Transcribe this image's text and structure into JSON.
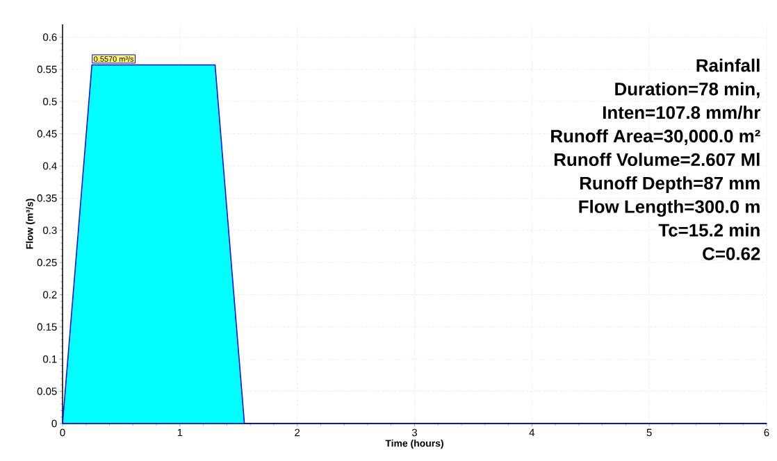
{
  "chart_data": {
    "type": "area",
    "xlabel": "Time  (hours)",
    "ylabel": "Flow  (m³/s)",
    "x": [
      0,
      0.25,
      1.3,
      1.55,
      6
    ],
    "values": [
      0,
      0.557,
      0.557,
      0,
      0
    ],
    "color": "#00ffff",
    "xlim": [
      0,
      6
    ],
    "xticks": [
      0,
      1,
      2,
      3,
      4,
      5,
      6
    ],
    "ylim": [
      0,
      0.62
    ],
    "yticks": [
      0,
      0.05,
      0.1,
      0.15,
      0.2,
      0.25,
      0.3,
      0.35,
      0.4,
      0.45,
      0.5,
      0.55,
      0.6
    ],
    "grid": true,
    "annotations": [
      {
        "text": "0.5570 m³/s",
        "x": 0.25,
        "y": 0.557
      },
      "Rainfall",
      "Duration=78 min,",
      "Inten=107.8 mm/hr",
      "Runoff Area=30,000.0 m²",
      "Runoff Volume=2.607 Ml",
      "Runoff Depth=87 mm",
      "Flow Length=300.0 m",
      "Tc=15.2 min",
      "C=0.62"
    ]
  }
}
